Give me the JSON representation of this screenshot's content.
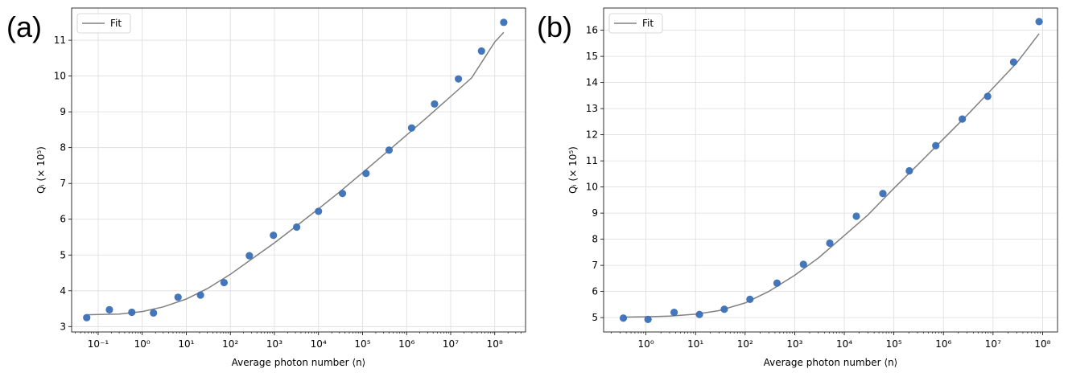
{
  "chart_data": [
    {
      "type": "scatter",
      "panel_label": "(a)",
      "xscale": "log",
      "xlabel": "Average photon number ⟨n⟩",
      "ylabel": "Qᵢ (× 10⁵)",
      "xlim": [
        0.025,
        500000000
      ],
      "ylim": [
        2.85,
        11.9
      ],
      "x_ticks": [
        0.1,
        1,
        10,
        100,
        1000,
        10000,
        100000,
        1000000,
        10000000,
        100000000
      ],
      "x_tick_labels": [
        "10⁻¹",
        "10⁰",
        "10¹",
        "10²",
        "10³",
        "10⁴",
        "10⁵",
        "10⁶",
        "10⁷",
        "10⁸"
      ],
      "y_ticks": [
        3,
        4,
        5,
        6,
        7,
        8,
        9,
        10,
        11
      ],
      "y_tick_labels": [
        "3",
        "4",
        "5",
        "6",
        "7",
        "8",
        "9",
        "10",
        "11"
      ],
      "grid": true,
      "legend": {
        "position": "top-left",
        "entries": [
          "Fit"
        ]
      },
      "colors": {
        "points": "#3a6fb8",
        "fit": "#808080"
      },
      "series": [
        {
          "kind": "points",
          "x": [
            0.055,
            0.18,
            0.58,
            1.8,
            6.5,
            21,
            72,
            270,
            950,
            3200,
            10000,
            35000,
            120000,
            400000,
            1300000,
            4300000,
            15000000,
            50000000,
            160000000
          ],
          "y": [
            3.25,
            3.47,
            3.4,
            3.38,
            3.82,
            3.88,
            4.23,
            4.98,
            5.55,
            5.78,
            6.22,
            6.72,
            7.28,
            7.93,
            8.55,
            9.22,
            9.92,
            10.7,
            11.5
          ]
        },
        {
          "kind": "fit",
          "name": "Fit",
          "x": [
            0.055,
            0.3,
            1,
            3,
            10,
            30,
            100,
            300,
            1000,
            3000,
            10000,
            30000,
            100000,
            300000,
            1000000,
            3000000,
            10000000,
            30000000,
            100000000,
            160000000
          ],
          "y": [
            3.33,
            3.35,
            3.42,
            3.55,
            3.77,
            4.06,
            4.46,
            4.88,
            5.34,
            5.79,
            6.29,
            6.76,
            7.3,
            7.8,
            8.35,
            8.86,
            9.43,
            9.95,
            10.95,
            11.22
          ]
        }
      ]
    },
    {
      "type": "scatter",
      "panel_label": "(b)",
      "xscale": "log",
      "xlabel": "Average photon number ⟨n⟩",
      "ylabel": "Qᵢ (× 10⁵)",
      "xlim": [
        0.14,
        200000000
      ],
      "ylim": [
        4.45,
        16.85
      ],
      "x_ticks": [
        1,
        10,
        100,
        1000,
        10000,
        100000,
        1000000,
        10000000,
        100000000
      ],
      "x_tick_labels": [
        "10⁰",
        "10¹",
        "10²",
        "10³",
        "10⁴",
        "10⁵",
        "10⁶",
        "10⁷",
        "10⁸"
      ],
      "y_ticks": [
        5,
        6,
        7,
        8,
        9,
        10,
        11,
        12,
        13,
        14,
        15,
        16
      ],
      "y_tick_labels": [
        "5",
        "6",
        "7",
        "8",
        "9",
        "10",
        "11",
        "12",
        "13",
        "14",
        "15",
        "16"
      ],
      "grid": true,
      "legend": {
        "position": "top-left",
        "entries": [
          "Fit"
        ]
      },
      "colors": {
        "points": "#3a6fb8",
        "fit": "#808080"
      },
      "series": [
        {
          "kind": "points",
          "x": [
            0.35,
            1.1,
            3.7,
            12,
            38,
            125,
            440,
            1500,
            5100,
            17500,
            60000,
            205000,
            700000,
            2400000,
            7800000,
            26000000,
            85000000
          ],
          "y": [
            4.98,
            4.93,
            5.2,
            5.12,
            5.32,
            5.7,
            6.32,
            7.04,
            7.85,
            8.88,
            9.75,
            10.62,
            11.58,
            12.6,
            13.47,
            14.78,
            16.33
          ]
        },
        {
          "kind": "fit",
          "name": "Fit",
          "x": [
            0.35,
            1,
            3,
            10,
            30,
            100,
            300,
            1000,
            3000,
            10000,
            30000,
            100000,
            300000,
            1000000,
            3000000,
            10000000,
            30000000,
            85000000
          ],
          "y": [
            5.02,
            5.03,
            5.06,
            5.13,
            5.27,
            5.56,
            6.0,
            6.62,
            7.28,
            8.14,
            8.93,
            9.95,
            10.84,
            11.84,
            12.75,
            13.79,
            14.75,
            15.87
          ]
        }
      ]
    }
  ]
}
